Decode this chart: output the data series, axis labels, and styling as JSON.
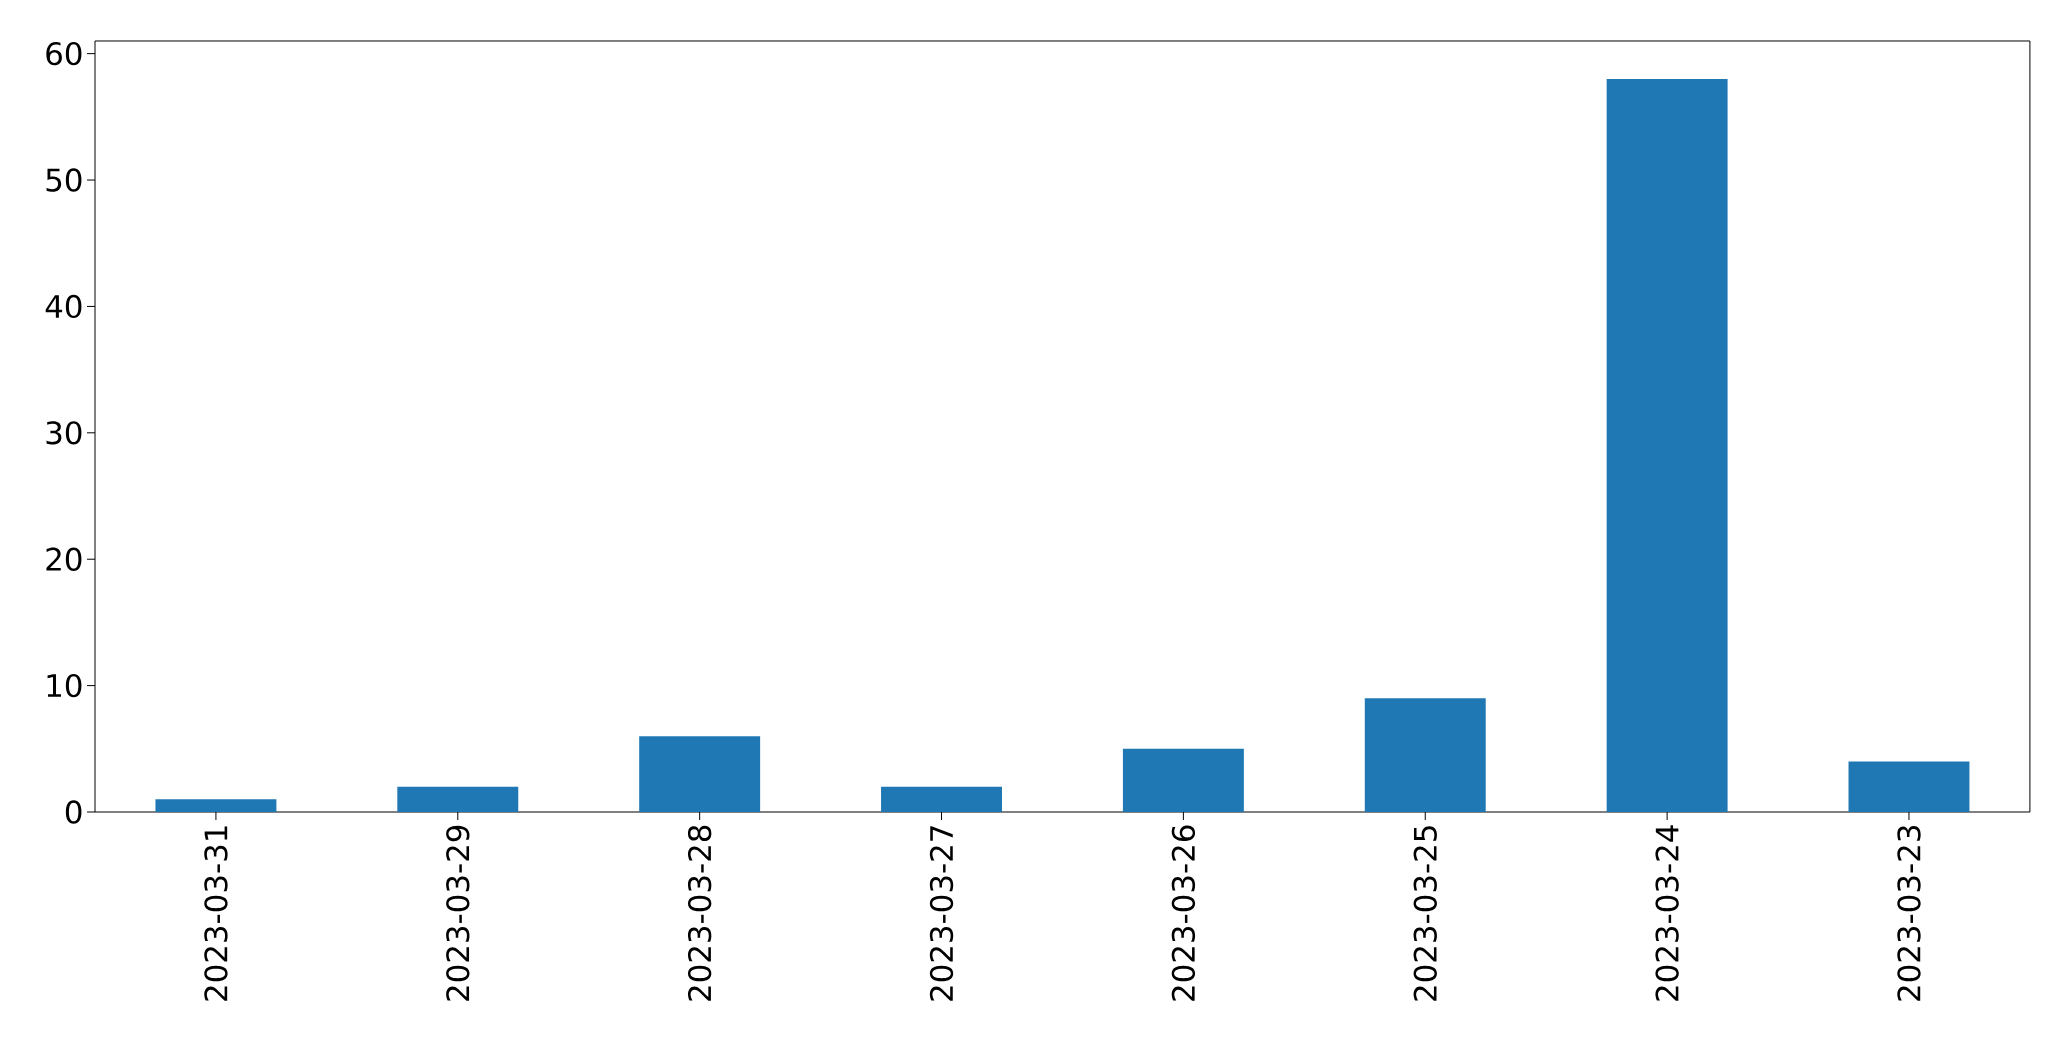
{
  "chart_data": {
    "type": "bar",
    "categories": [
      "2023-03-31",
      "2023-03-29",
      "2023-03-28",
      "2023-03-27",
      "2023-03-26",
      "2023-03-25",
      "2023-03-24",
      "2023-03-23"
    ],
    "values": [
      1,
      2,
      6,
      2,
      5,
      9,
      58,
      4
    ],
    "color": "#1f77b4",
    "ylim": [
      0,
      61
    ],
    "yticks": [
      0,
      10,
      20,
      30,
      40,
      50,
      60
    ],
    "grid": false
  }
}
